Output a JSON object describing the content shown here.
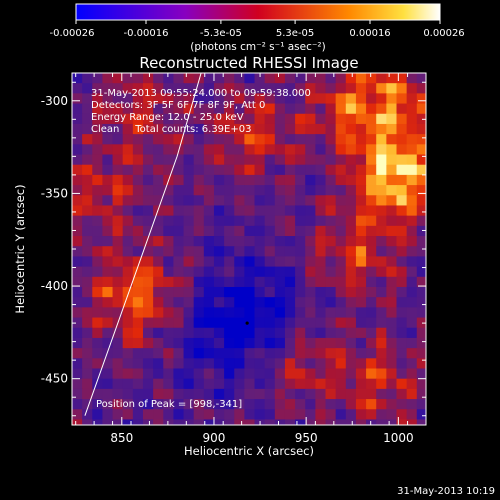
{
  "colorbar": {
    "ticks": [
      "-0.00026",
      "-0.00016",
      "-5.3e-05",
      "5.3e-05",
      "0.00016",
      "0.00026"
    ],
    "tick_values": [
      -0.00026,
      -0.00016,
      -5.3e-05,
      5.3e-05,
      0.00016,
      0.00026
    ],
    "range": [
      -0.00026,
      0.00026
    ],
    "units_label": "(photons cm⁻² s⁻¹ asec⁻²)"
  },
  "plot": {
    "title": "Reconstructed RHESSI Image",
    "info_lines": [
      "31-May-2013 09:55:24.000 to 09:59:38.000",
      "Detectors: 3F 5F 6F 7F 8F 9F, Att 0",
      "Energy Range: 12.0 - 25.0 keV",
      "Clean     Total counts: 6.39E+03"
    ],
    "peak_label": "Position of Peak = [998,-341]",
    "xlabel": "Heliocentric X (arcsec)",
    "ylabel": "Heliocentric Y (arcsec)"
  },
  "timestamp": "31-May-2013 10:19",
  "colors": {
    "background": "#000000",
    "limb": "#ffffff",
    "low": "#2020c0",
    "high": "#ffffc0"
  },
  "chart_data": {
    "type": "heatmap",
    "title": "Reconstructed RHESSI Image",
    "xlabel": "Heliocentric X (arcsec)",
    "ylabel": "Heliocentric Y (arcsec)",
    "xlim": [
      823,
      1015
    ],
    "ylim": [
      -475,
      -285
    ],
    "xticks": [
      850,
      900,
      950,
      1000
    ],
    "yticks": [
      -300,
      -350,
      -400,
      -450
    ],
    "grid": false,
    "colormap": "blue-purple-red-yellow",
    "peak": [
      998,
      -341
    ],
    "limb_points": [
      [
        830,
        -470
      ],
      [
        855,
        -400
      ],
      [
        880,
        -330
      ],
      [
        893,
        -285
      ]
    ],
    "sources": [
      {
        "x": 998,
        "y": -341,
        "value": 0.00026
      },
      {
        "x": 858,
        "y": -405,
        "value": 0.00018
      },
      {
        "x": 920,
        "y": -318,
        "value": 0.00012
      },
      {
        "x": 975,
        "y": -305,
        "value": 0.00013
      },
      {
        "x": 1002,
        "y": -300,
        "value": 0.00014
      },
      {
        "x": 975,
        "y": -384,
        "value": 0.00013
      },
      {
        "x": 945,
        "y": -440,
        "value": 0.00012
      },
      {
        "x": 990,
        "y": -452,
        "value": 0.00011
      },
      {
        "x": 840,
        "y": -350,
        "value": 0.0001
      },
      {
        "x": 860,
        "y": -305,
        "value": 0.0001
      }
    ],
    "minimum": {
      "x": 918,
      "y": -420,
      "value": -0.00026
    }
  }
}
